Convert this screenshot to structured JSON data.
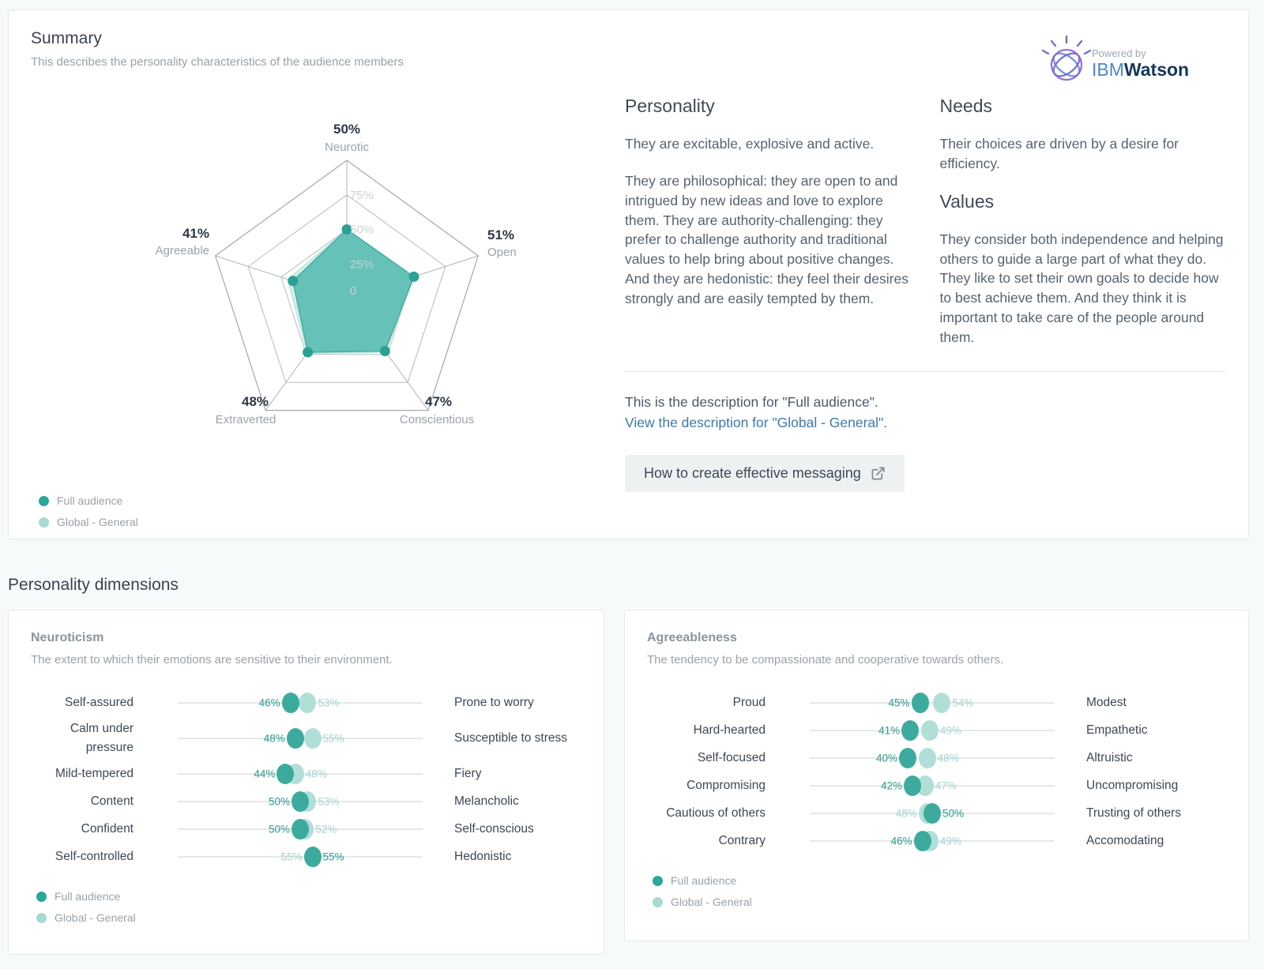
{
  "summary_card": {
    "title": "Summary",
    "subtitle": "This describes the personality characteristics of the audience members",
    "watson": {
      "powered_by": "Powered by",
      "ibm": "IBM",
      "watson": "Watson"
    },
    "sections": {
      "personality": {
        "heading": "Personality",
        "paragraphs": [
          "They are excitable, explosive and active.",
          "They are philosophical: they are open to and intrigued by new ideas and love to explore them. They are authority-challenging: they prefer to challenge authority and traditional values to help bring about positive changes. And they are hedonistic: they feel their desires strongly and are easily tempted by them."
        ]
      },
      "needs": {
        "heading": "Needs",
        "paragraphs": [
          "Their choices are driven by a desire for efficiency."
        ]
      },
      "values": {
        "heading": "Values",
        "paragraphs": [
          "They consider both independence and helping others to guide a large part of what they do. They like to set their own goals to decide how to best achieve them. And they think it is important to take care of the people around them."
        ]
      }
    },
    "description_note": "This is the description for \"Full audience\".",
    "description_link": "View the description for \"Global - General\".",
    "cta_button": "How to create effective messaging"
  },
  "legend": {
    "full": "Full audience",
    "global": "Global - General"
  },
  "dimensions_heading": "Personality dimensions",
  "colors": {
    "teal_full": "#2aa79a",
    "teal_global": "#a7dad2",
    "radar_fill_full": "#57bcb0",
    "radar_fill_global": "#d5ede9",
    "link_blue": "#3f79a8",
    "button_bg": "#eef1f1",
    "page_bg": "#f7fafa"
  },
  "chart_data": [
    {
      "type": "radar",
      "axes": [
        "Neurotic",
        "Open",
        "Conscientious",
        "Extraverted",
        "Agreeable"
      ],
      "axis_value_labels": [
        "50%",
        "51%",
        "47%",
        "48%",
        "41%"
      ],
      "series": [
        {
          "name": "Full audience",
          "values": [
            50,
            51,
            47,
            48,
            41
          ]
        },
        {
          "name": "Global - General",
          "values": [
            50,
            51,
            48,
            49,
            45
          ],
          "estimated_from_pixels": true
        }
      ],
      "rings": [
        25,
        50,
        75,
        100
      ],
      "ring_tick_labels": [
        "25%",
        "50%",
        "75%"
      ],
      "zero_label": "0",
      "max": 100,
      "legend_position": "bottom-left"
    },
    {
      "type": "dot-range",
      "title": "Neuroticism",
      "subtitle": "The extent to which their emotions are sensitive to their environment.",
      "series_names": [
        "Full audience",
        "Global - General"
      ],
      "axis_range": [
        0,
        100
      ],
      "rows": [
        {
          "left": "Self-assured",
          "right": "Prone to worry",
          "full": 46,
          "global": 53
        },
        {
          "left": "Calm under pressure",
          "right": "Susceptible to stress",
          "full": 48,
          "global": 55
        },
        {
          "left": "Mild-tempered",
          "right": "Fiery",
          "full": 44,
          "global": 48
        },
        {
          "left": "Content",
          "right": "Melancholic",
          "full": 50,
          "global": 53
        },
        {
          "left": "Confident",
          "right": "Self-conscious",
          "full": 50,
          "global": 52
        },
        {
          "left": "Self-controlled",
          "right": "Hedonistic",
          "full": 55,
          "global": 55
        }
      ]
    },
    {
      "type": "dot-range",
      "title": "Agreeableness",
      "subtitle": "The tendency to be compassionate and cooperative towards others.",
      "series_names": [
        "Full audience",
        "Global - General"
      ],
      "axis_range": [
        0,
        100
      ],
      "rows": [
        {
          "left": "Proud",
          "right": "Modest",
          "full": 45,
          "global": 54
        },
        {
          "left": "Hard-hearted",
          "right": "Empathetic",
          "full": 41,
          "global": 49
        },
        {
          "left": "Self-focused",
          "right": "Altruistic",
          "full": 40,
          "global": 48
        },
        {
          "left": "Compromising",
          "right": "Uncompromising",
          "full": 42,
          "global": 47
        },
        {
          "left": "Cautious of others",
          "right": "Trusting of others",
          "full": 50,
          "global": 48
        },
        {
          "left": "Contrary",
          "right": "Accomodating",
          "full": 46,
          "global": 49
        }
      ]
    }
  ]
}
